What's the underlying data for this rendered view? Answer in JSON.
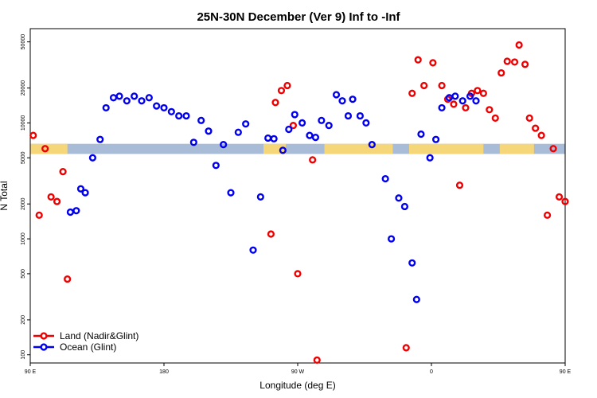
{
  "chart_data": {
    "type": "scatter",
    "title": "25N-30N December (Ver 9)   Inf to -Inf",
    "xlabel": "Longitude (deg E)",
    "ylabel": "N Total",
    "y_scale": "log",
    "xlim": [
      90,
      450
    ],
    "ylim": [
      85,
      65000
    ],
    "grid": false,
    "legend_position": "bottom-left",
    "x_ticks": [
      {
        "value": 90,
        "label": "90 E"
      },
      {
        "value": 180,
        "label": "180"
      },
      {
        "value": 270,
        "label": "90 W"
      },
      {
        "value": 360,
        "label": "0"
      },
      {
        "value": 450,
        "label": "90 E"
      },
      {
        "value": 540,
        "label": "180"
      }
    ],
    "y_ticks": [
      {
        "value": 100,
        "label": "100"
      },
      {
        "value": 200,
        "label": "200"
      },
      {
        "value": 500,
        "label": "500"
      },
      {
        "value": 1000,
        "label": "1000"
      },
      {
        "value": 2000,
        "label": "2000"
      },
      {
        "value": 5000,
        "label": "5000"
      },
      {
        "value": 10000,
        "label": "10000"
      },
      {
        "value": 20000,
        "label": "20000"
      },
      {
        "value": 50000,
        "label": "50000"
      }
    ],
    "surface_strip": {
      "y_range": [
        5400,
        6600
      ],
      "land_color": "#f5d77a",
      "ocean_color": "#a8bcd8",
      "land_intervals": [
        [
          90,
          115
        ],
        [
          247,
          262
        ],
        [
          288,
          334
        ],
        [
          345,
          395
        ],
        [
          406,
          429
        ]
      ]
    },
    "series": [
      {
        "name": "Land (Nadir&Glint)",
        "color": "#ee0000",
        "points": [
          [
            92,
            7800
          ],
          [
            96,
            1600
          ],
          [
            100,
            6000
          ],
          [
            104,
            2300
          ],
          [
            108,
            2100
          ],
          [
            112,
            3800
          ],
          [
            115,
            450
          ],
          [
            252,
            1100
          ],
          [
            255,
            15000
          ],
          [
            259,
            19000
          ],
          [
            263,
            21000
          ],
          [
            267,
            9500
          ],
          [
            270,
            500
          ],
          [
            280,
            4800
          ],
          [
            283,
            90
          ],
          [
            343,
            115
          ],
          [
            347,
            18000
          ],
          [
            351,
            35000
          ],
          [
            355,
            21000
          ],
          [
            361,
            33000
          ],
          [
            367,
            21000
          ],
          [
            371,
            16000
          ],
          [
            375,
            14500
          ],
          [
            379,
            2900
          ],
          [
            383,
            13500
          ],
          [
            387,
            18000
          ],
          [
            391,
            19000
          ],
          [
            395,
            18000
          ],
          [
            399,
            13000
          ],
          [
            403,
            11000
          ],
          [
            407,
            27000
          ],
          [
            411,
            34000
          ],
          [
            416,
            33500
          ],
          [
            419,
            47000
          ],
          [
            423,
            32000
          ],
          [
            426,
            11000
          ],
          [
            430,
            9000
          ],
          [
            434,
            7800
          ],
          [
            438,
            1600
          ],
          [
            442,
            6000
          ],
          [
            446,
            2300
          ],
          [
            450,
            2100
          ]
        ]
      },
      {
        "name": "Ocean (Glint)",
        "color": "#0000ee",
        "points": [
          [
            117,
            1700
          ],
          [
            121,
            1750
          ],
          [
            124,
            2700
          ],
          [
            127,
            2500
          ],
          [
            132,
            5000
          ],
          [
            137,
            7200
          ],
          [
            141,
            13500
          ],
          [
            146,
            16500
          ],
          [
            150,
            17000
          ],
          [
            155,
            15500
          ],
          [
            160,
            17000
          ],
          [
            165,
            15500
          ],
          [
            170,
            16500
          ],
          [
            175,
            14000
          ],
          [
            180,
            13500
          ],
          [
            185,
            12500
          ],
          [
            190,
            11500
          ],
          [
            195,
            11500
          ],
          [
            200,
            6800
          ],
          [
            205,
            10500
          ],
          [
            210,
            8500
          ],
          [
            215,
            4300
          ],
          [
            220,
            6500
          ],
          [
            225,
            2500
          ],
          [
            230,
            8300
          ],
          [
            235,
            9800
          ],
          [
            240,
            800
          ],
          [
            245,
            2300
          ],
          [
            250,
            7400
          ],
          [
            254,
            7300
          ],
          [
            260,
            5800
          ],
          [
            264,
            8800
          ],
          [
            268,
            11800
          ],
          [
            273,
            10000
          ],
          [
            278,
            7800
          ],
          [
            282,
            7500
          ],
          [
            286,
            10500
          ],
          [
            291,
            9500
          ],
          [
            296,
            17500
          ],
          [
            300,
            15500
          ],
          [
            304,
            11500
          ],
          [
            307,
            16000
          ],
          [
            312,
            11500
          ],
          [
            316,
            10000
          ],
          [
            320,
            6500
          ],
          [
            329,
            3300
          ],
          [
            333,
            1000
          ],
          [
            338,
            2250
          ],
          [
            342,
            1900
          ],
          [
            347,
            620
          ],
          [
            350,
            300
          ],
          [
            353,
            8000
          ],
          [
            359,
            5000
          ],
          [
            363,
            7200
          ],
          [
            367,
            13500
          ],
          [
            372,
            16500
          ],
          [
            376,
            17000
          ],
          [
            381,
            15500
          ],
          [
            386,
            17000
          ],
          [
            390,
            15500
          ]
        ]
      }
    ]
  }
}
